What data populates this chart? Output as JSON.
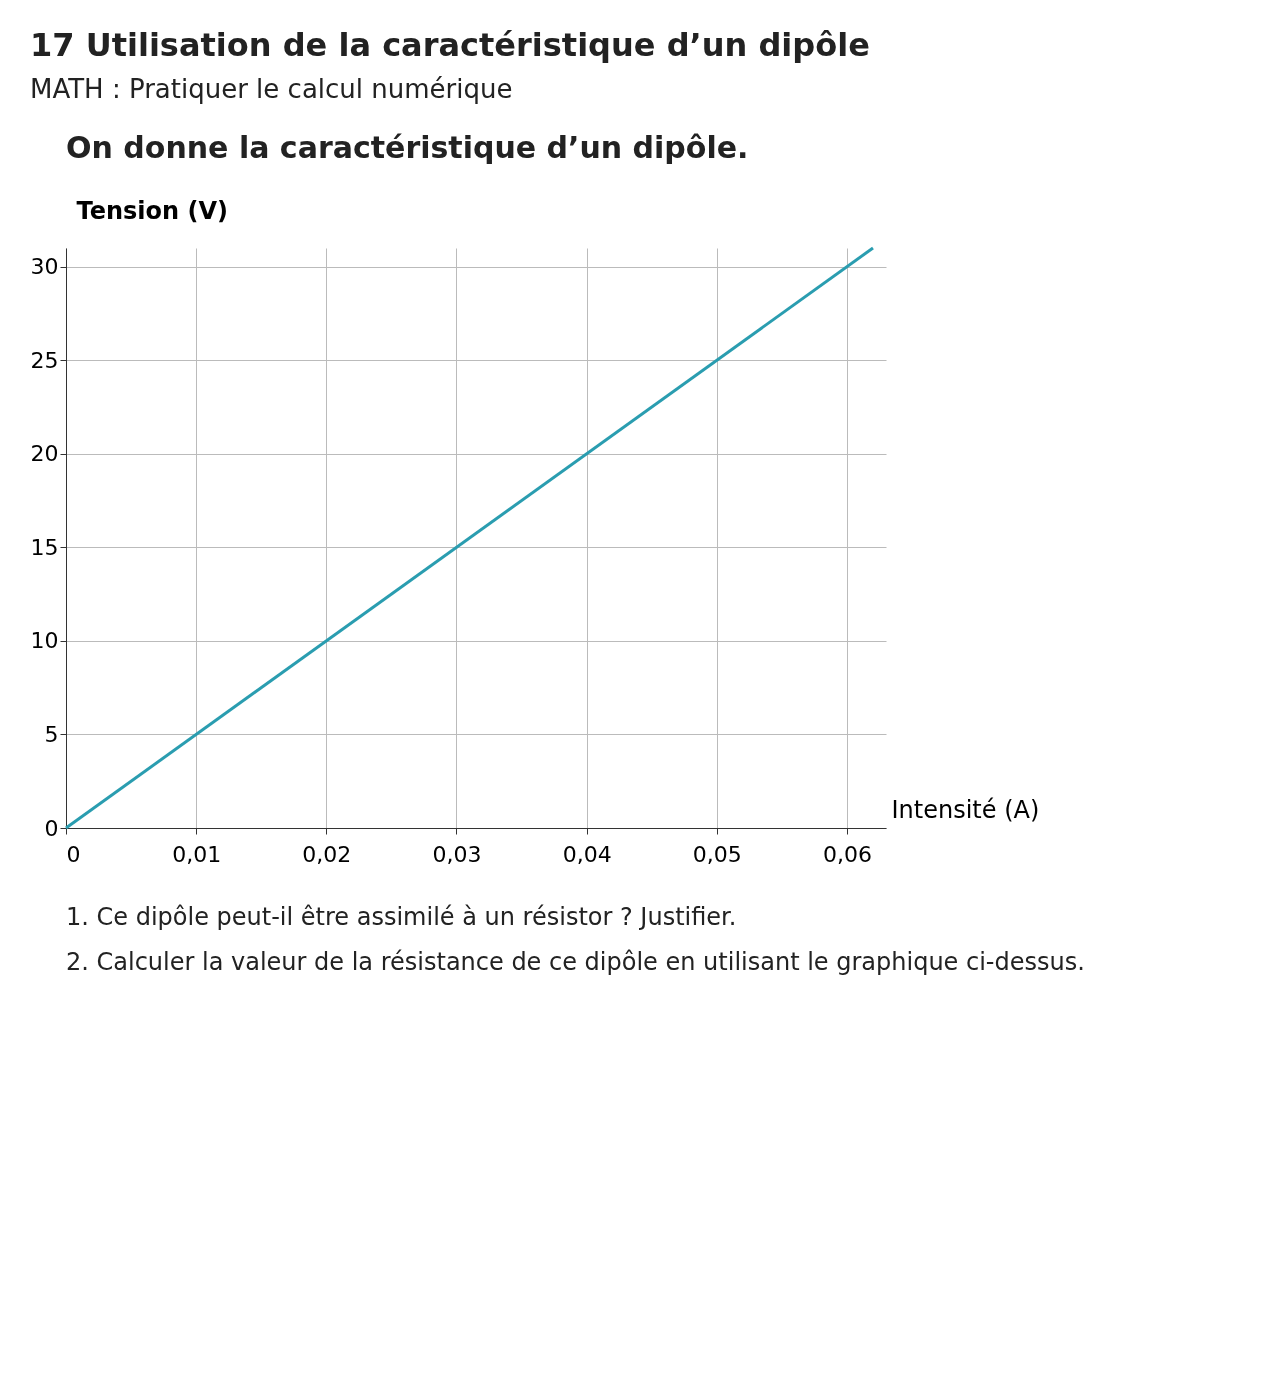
{
  "chart_data": {
    "type": "line",
    "title": "17 Utilisation de la caractéristique d’un dipôle",
    "subtitle": "MATH : Pratiquer le calcul numérique",
    "annotations": [
      "On donne la caractéristique d’un dipôle.",
      "1. Ce dipôle peut-il être assimilé à un résistor ? Justifier.",
      "2. Calculer la valeur de la résistance de ce dipôle en utilisant le graphique ci-dessus."
    ],
    "xlabel": "Intensité (A)",
    "ylabel": "Tension (V)",
    "x": [
      0,
      0.062
    ],
    "series": [
      {
        "color": "#2a9db0",
        "values": [
          0,
          31
        ]
      }
    ],
    "xlim": [
      0,
      0.063
    ],
    "ylim": [
      0,
      31
    ],
    "xticks": [
      0,
      {
        "value": 0.01,
        "label": "0,01"
      },
      {
        "value": 0.02,
        "label": "0,02"
      },
      {
        "value": 0.03,
        "label": "0,03"
      },
      {
        "value": 0.04,
        "label": "0,04"
      },
      {
        "value": 0.05,
        "label": "0,05"
      },
      {
        "value": 0.06,
        "label": "0,06"
      }
    ],
    "yticks": [
      0,
      5,
      10,
      15,
      20,
      25,
      30
    ],
    "grid": true,
    "marker": "none",
    "line_style": "solid"
  }
}
